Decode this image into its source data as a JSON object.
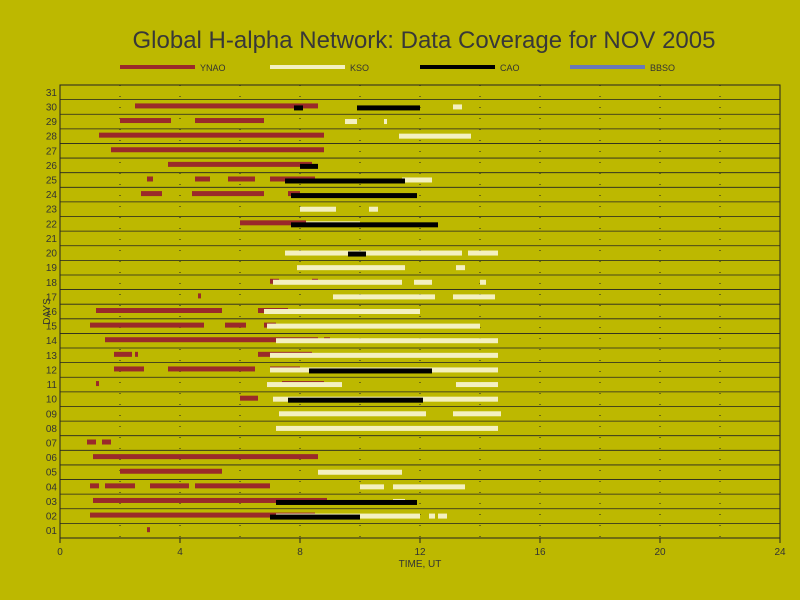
{
  "chart_data": {
    "type": "timeline",
    "title": "Global H-alpha Network: Data Coverage for NOV 2005",
    "xlabel": "TIME, UT",
    "ylabel": "DAYS",
    "xlim": [
      0,
      24
    ],
    "xticks": [
      0,
      4,
      8,
      12,
      16,
      20,
      24
    ],
    "ylim": [
      1,
      31
    ],
    "yticks": [
      "01",
      "02",
      "03",
      "04",
      "05",
      "06",
      "07",
      "08",
      "09",
      "10",
      "11",
      "12",
      "13",
      "14",
      "15",
      "16",
      "17",
      "18",
      "19",
      "20",
      "21",
      "22",
      "23",
      "24",
      "25",
      "26",
      "27",
      "28",
      "29",
      "30",
      "31"
    ],
    "grid": true,
    "legend_position": "top",
    "colors": {
      "background": "#bdb800",
      "YNAO": "#9a2a2a",
      "KSO": "#f4f0c0",
      "CAO": "#000000",
      "BBSO": "#6a78b8"
    },
    "series": [
      {
        "name": "YNAO",
        "intervals": [
          {
            "day": 30,
            "segments": [
              [
                2.5,
                8.6
              ]
            ]
          },
          {
            "day": 29,
            "segments": [
              [
                2.0,
                3.7
              ],
              [
                4.5,
                6.8
              ]
            ]
          },
          {
            "day": 28,
            "segments": [
              [
                1.3,
                8.8
              ]
            ]
          },
          {
            "day": 27,
            "segments": [
              [
                1.7,
                8.8
              ]
            ]
          },
          {
            "day": 26,
            "segments": [
              [
                3.6,
                8.4
              ]
            ]
          },
          {
            "day": 25,
            "segments": [
              [
                2.9,
                3.1
              ],
              [
                4.5,
                5.0
              ],
              [
                5.6,
                6.5
              ],
              [
                7.0,
                8.5
              ]
            ]
          },
          {
            "day": 24,
            "segments": [
              [
                2.7,
                3.4
              ],
              [
                4.4,
                6.8
              ],
              [
                7.6,
                8.0
              ]
            ]
          },
          {
            "day": 22,
            "segments": [
              [
                6.0,
                8.2
              ]
            ]
          },
          {
            "day": 18,
            "segments": [
              [
                7.0,
                7.3
              ],
              [
                8.4,
                8.6
              ]
            ]
          },
          {
            "day": 17,
            "segments": [
              [
                4.6,
                4.7
              ]
            ]
          },
          {
            "day": 16,
            "segments": [
              [
                1.2,
                5.4
              ],
              [
                6.6,
                7.6
              ]
            ]
          },
          {
            "day": 15,
            "segments": [
              [
                1.0,
                4.8
              ],
              [
                5.5,
                6.2
              ],
              [
                6.8,
                7.2
              ]
            ]
          },
          {
            "day": 14,
            "segments": [
              [
                1.5,
                8.6
              ],
              [
                8.8,
                9.0
              ]
            ]
          },
          {
            "day": 13,
            "segments": [
              [
                1.8,
                2.4
              ],
              [
                2.5,
                2.6
              ],
              [
                6.6,
                8.4
              ]
            ]
          },
          {
            "day": 12,
            "segments": [
              [
                1.8,
                2.8
              ],
              [
                3.6,
                6.5
              ],
              [
                7.0,
                8.0
              ]
            ]
          },
          {
            "day": 11,
            "segments": [
              [
                1.2,
                1.3
              ],
              [
                7.4,
                8.8
              ]
            ]
          },
          {
            "day": 10,
            "segments": [
              [
                6.0,
                6.6
              ]
            ]
          },
          {
            "day": 7,
            "segments": [
              [
                0.9,
                1.2
              ],
              [
                1.4,
                1.7
              ]
            ]
          },
          {
            "day": 6,
            "segments": [
              [
                1.1,
                8.6
              ]
            ]
          },
          {
            "day": 5,
            "segments": [
              [
                2.0,
                5.4
              ]
            ]
          },
          {
            "day": 4,
            "segments": [
              [
                1.0,
                1.3
              ],
              [
                1.5,
                2.5
              ],
              [
                3.0,
                4.3
              ],
              [
                4.5,
                7.0
              ]
            ]
          },
          {
            "day": 3,
            "segments": [
              [
                1.1,
                8.9
              ]
            ]
          },
          {
            "day": 2,
            "segments": [
              [
                1.0,
                8.5
              ]
            ]
          },
          {
            "day": 1,
            "segments": [
              [
                2.9,
                3.0
              ]
            ]
          }
        ]
      },
      {
        "name": "KSO",
        "intervals": [
          {
            "day": 30,
            "segments": [
              [
                13.1,
                13.4
              ]
            ]
          },
          {
            "day": 29,
            "segments": [
              [
                9.5,
                9.9
              ],
              [
                10.8,
                10.9
              ]
            ]
          },
          {
            "day": 28,
            "segments": [
              [
                11.3,
                13.7
              ]
            ]
          },
          {
            "day": 25,
            "segments": [
              [
                11.4,
                12.4
              ]
            ]
          },
          {
            "day": 23,
            "segments": [
              [
                8.0,
                9.2
              ],
              [
                10.3,
                10.6
              ]
            ]
          },
          {
            "day": 22,
            "segments": [
              [
                8.2,
                10.0
              ]
            ]
          },
          {
            "day": 20,
            "segments": [
              [
                7.5,
                13.4
              ],
              [
                13.6,
                14.6
              ]
            ]
          },
          {
            "day": 19,
            "segments": [
              [
                7.9,
                11.5
              ],
              [
                13.2,
                13.5
              ]
            ]
          },
          {
            "day": 18,
            "segments": [
              [
                7.1,
                11.4
              ],
              [
                11.8,
                12.4
              ],
              [
                14.0,
                14.2
              ]
            ]
          },
          {
            "day": 17,
            "segments": [
              [
                9.1,
                12.5
              ],
              [
                13.1,
                14.5
              ]
            ]
          },
          {
            "day": 16,
            "segments": [
              [
                6.8,
                12.0
              ]
            ]
          },
          {
            "day": 15,
            "segments": [
              [
                6.9,
                14.0
              ]
            ]
          },
          {
            "day": 14,
            "segments": [
              [
                7.2,
                14.6
              ]
            ]
          },
          {
            "day": 13,
            "segments": [
              [
                7.0,
                14.6
              ]
            ]
          },
          {
            "day": 12,
            "segments": [
              [
                7.0,
                14.6
              ]
            ]
          },
          {
            "day": 11,
            "segments": [
              [
                6.9,
                9.4
              ],
              [
                13.2,
                14.6
              ]
            ]
          },
          {
            "day": 10,
            "segments": [
              [
                7.1,
                14.6
              ]
            ]
          },
          {
            "day": 9,
            "segments": [
              [
                7.3,
                12.2
              ],
              [
                13.1,
                14.7
              ]
            ]
          },
          {
            "day": 8,
            "segments": [
              [
                7.2,
                14.6
              ]
            ]
          },
          {
            "day": 5,
            "segments": [
              [
                8.6,
                11.4
              ]
            ]
          },
          {
            "day": 4,
            "segments": [
              [
                10.0,
                10.8
              ],
              [
                11.1,
                13.5
              ]
            ]
          },
          {
            "day": 3,
            "segments": [
              [
                11.1,
                11.5
              ]
            ]
          },
          {
            "day": 2,
            "segments": [
              [
                7.2,
                12.0
              ],
              [
                12.3,
                12.5
              ],
              [
                12.6,
                12.9
              ]
            ]
          }
        ]
      },
      {
        "name": "CAO",
        "intervals": [
          {
            "day": 30,
            "segments": [
              [
                7.8,
                8.1
              ],
              [
                9.9,
                12.0
              ]
            ]
          },
          {
            "day": 26,
            "segments": [
              [
                8.0,
                8.6
              ]
            ]
          },
          {
            "day": 25,
            "segments": [
              [
                7.5,
                11.5
              ]
            ]
          },
          {
            "day": 24,
            "segments": [
              [
                7.7,
                11.9
              ]
            ]
          },
          {
            "day": 22,
            "segments": [
              [
                7.7,
                12.6
              ]
            ]
          },
          {
            "day": 20,
            "segments": [
              [
                9.6,
                10.2
              ]
            ]
          },
          {
            "day": 12,
            "segments": [
              [
                8.3,
                12.4
              ]
            ]
          },
          {
            "day": 10,
            "segments": [
              [
                7.6,
                12.1
              ]
            ]
          },
          {
            "day": 3,
            "segments": [
              [
                7.2,
                11.9
              ]
            ]
          },
          {
            "day": 2,
            "segments": [
              [
                7.0,
                10.0
              ]
            ]
          }
        ]
      },
      {
        "name": "BBSO",
        "intervals": []
      }
    ]
  }
}
